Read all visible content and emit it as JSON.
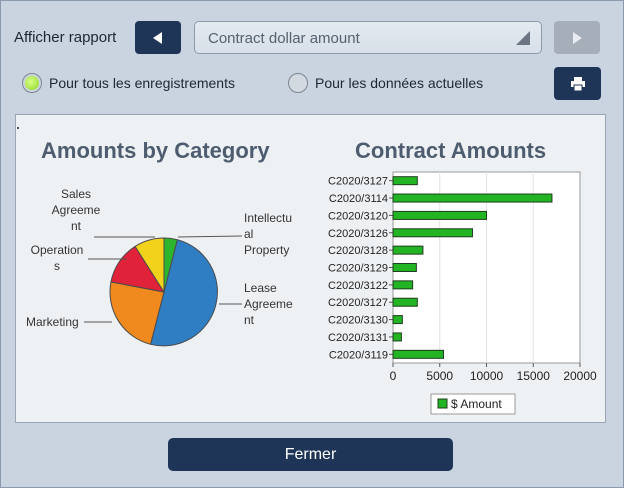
{
  "toolbar": {
    "show_report_label": "Afficher rapport",
    "report_select_value": "Contract dollar amount"
  },
  "filters": {
    "all_records_label": "Pour tous les enregistrements",
    "current_data_label": "Pour les données actuelles",
    "selected": "all_records"
  },
  "footer": {
    "close_label": "Fermer"
  },
  "chart_data": [
    {
      "type": "pie",
      "title": "Amounts by Category",
      "slices": [
        {
          "label": "Intellectual Property",
          "value": 4,
          "color": "#2db52d"
        },
        {
          "label": "Lease Agreement",
          "value": 50,
          "color": "#2f7ec4"
        },
        {
          "label": "Marketing",
          "value": 24,
          "color": "#f08a1e"
        },
        {
          "label": "Operations",
          "value": 13,
          "color": "#e0223a"
        },
        {
          "label": "Sales Agreement",
          "value": 9,
          "color": "#f3d21c"
        }
      ],
      "label_text": {
        "sales": [
          "Sales",
          "Agreeme",
          "nt"
        ],
        "operations": [
          "Operation",
          "s"
        ],
        "marketing": [
          "Marketing"
        ],
        "ip": [
          "Intellectu",
          "al",
          "Property"
        ],
        "lease": [
          "Lease",
          "Agreeme",
          "nt"
        ]
      }
    },
    {
      "type": "bar",
      "orientation": "horizontal",
      "title": "Contract Amounts",
      "categories": [
        "C2020/3127",
        "C2020/3114",
        "C2020/3120",
        "C2020/3126",
        "C2020/3128",
        "C2020/3129",
        "C2020/3122",
        "C2020/3127",
        "C2020/3130",
        "C2020/3131",
        "C2020/3119"
      ],
      "series": [
        {
          "name": "$ Amount",
          "values": [
            2600,
            17000,
            10000,
            8500,
            3200,
            2500,
            2100,
            2600,
            1000,
            900,
            5400
          ],
          "color": "#22b422"
        }
      ],
      "xlim": [
        0,
        20000
      ],
      "xticks": [
        "0",
        "5000",
        "10000",
        "15000",
        "20000"
      ],
      "grid": true,
      "legend": "bottom"
    }
  ]
}
